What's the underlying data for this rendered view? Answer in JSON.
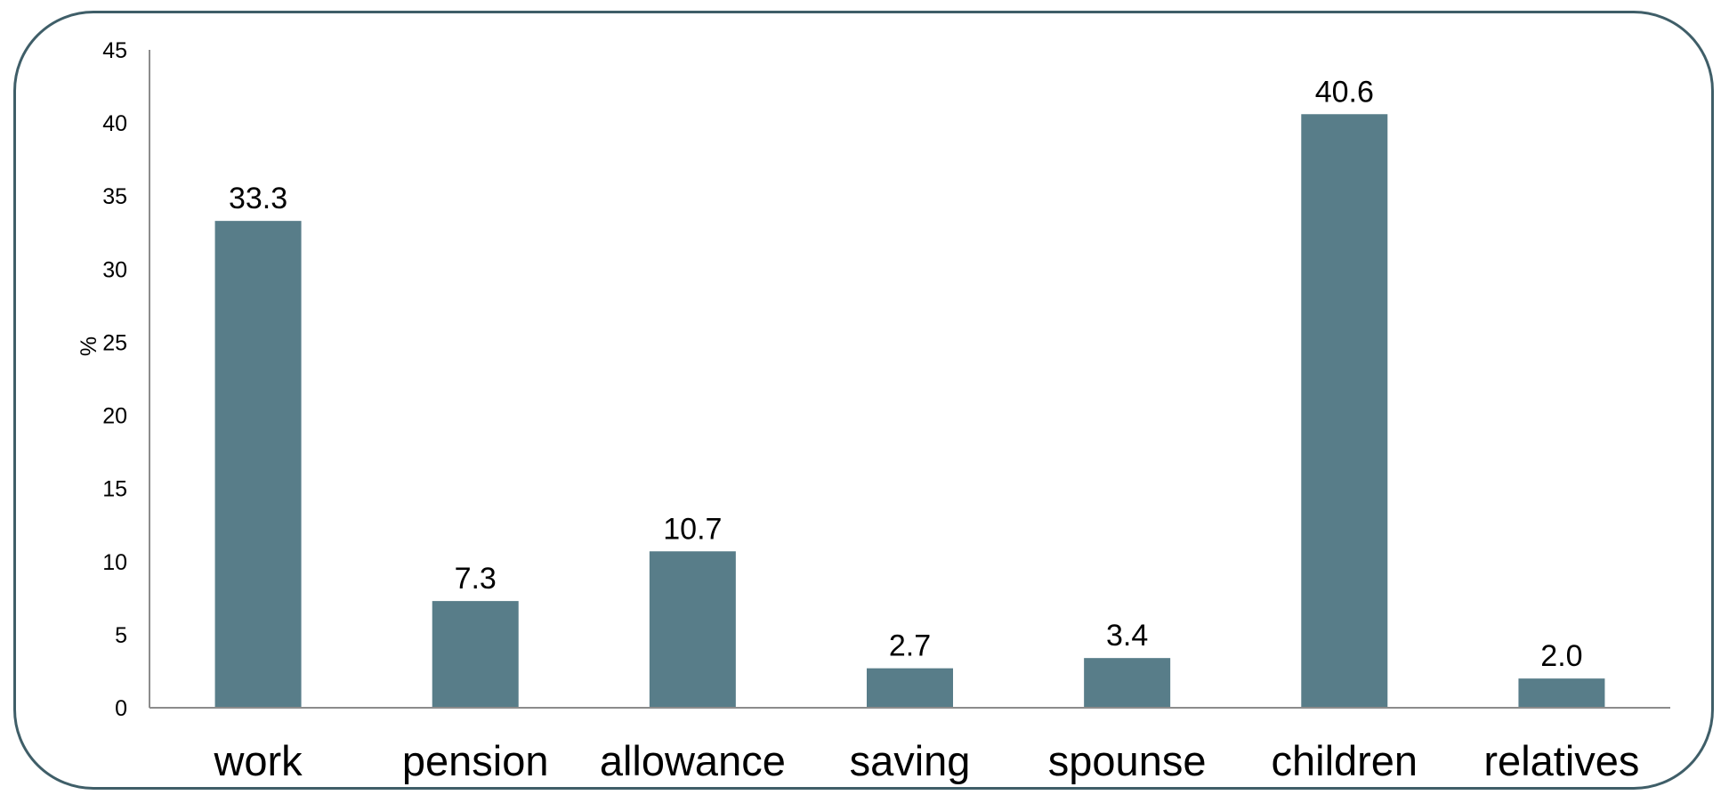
{
  "chart_data": {
    "type": "bar",
    "categories": [
      "work",
      "pension",
      "allowance",
      "saving",
      "spounse",
      "children",
      "relatives"
    ],
    "values": [
      33.3,
      7.3,
      10.7,
      2.7,
      3.4,
      40.6,
      2.0
    ],
    "value_labels": [
      "33.3",
      "7.3",
      "10.7",
      "2.7",
      "3.4",
      "40.6",
      "2.0"
    ],
    "title": "",
    "xlabel": "",
    "ylabel": "%",
    "ylim": [
      0,
      45
    ],
    "yticks": [
      0,
      5,
      10,
      15,
      20,
      25,
      30,
      35,
      40,
      45
    ],
    "grid": false,
    "legend": "none",
    "colors": {
      "bar": "#587d89",
      "axis": "#8c8c8c",
      "frame": "#3f5e68"
    }
  }
}
